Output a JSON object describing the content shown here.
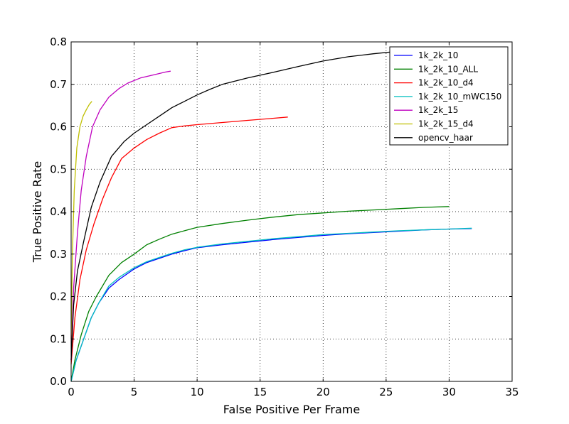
{
  "chart_data": {
    "type": "line",
    "title": "",
    "xlabel": "False Positive Per Frame",
    "ylabel": "True Positive Rate",
    "xlim": [
      0,
      35
    ],
    "ylim": [
      0.0,
      0.8
    ],
    "xticks": [
      0,
      5,
      10,
      15,
      20,
      25,
      30,
      35
    ],
    "yticks": [
      0.0,
      0.1,
      0.2,
      0.3,
      0.4,
      0.5,
      0.6,
      0.7,
      0.8
    ],
    "xtick_labels": [
      "0",
      "5",
      "10",
      "15",
      "20",
      "25",
      "30",
      "35"
    ],
    "ytick_labels": [
      "0.0",
      "0.1",
      "0.2",
      "0.3",
      "0.4",
      "0.5",
      "0.6",
      "0.7",
      "0.8"
    ],
    "grid": true,
    "legend_position": "top-right",
    "series": [
      {
        "name": "1k_2k_10",
        "color": "#0000ff",
        "x": [
          0.0,
          0.4,
          1.0,
          1.6,
          2.2,
          3.0,
          3.8,
          5.0,
          6.0,
          7.0,
          8.0,
          9.0,
          10.0,
          12.0,
          14.0,
          16.0,
          18.0,
          20.0,
          22.0,
          24.0,
          26.0,
          28.0,
          30.0,
          31.8
        ],
        "y": [
          0.0,
          0.05,
          0.1,
          0.15,
          0.185,
          0.22,
          0.24,
          0.265,
          0.28,
          0.29,
          0.3,
          0.308,
          0.315,
          0.322,
          0.328,
          0.334,
          0.339,
          0.344,
          0.348,
          0.351,
          0.354,
          0.357,
          0.359,
          0.36
        ]
      },
      {
        "name": "1k_2k_10_ALL",
        "color": "#008000",
        "x": [
          0.0,
          0.3,
          0.8,
          1.4,
          2.0,
          3.0,
          4.0,
          5.0,
          6.0,
          7.0,
          8.0,
          9.0,
          10.0,
          12.0,
          14.0,
          16.0,
          18.0,
          20.0,
          22.0,
          24.0,
          26.0,
          28.0,
          30.0
        ],
        "y": [
          0.0,
          0.05,
          0.11,
          0.165,
          0.2,
          0.25,
          0.28,
          0.3,
          0.322,
          0.335,
          0.347,
          0.355,
          0.363,
          0.372,
          0.38,
          0.387,
          0.393,
          0.397,
          0.401,
          0.404,
          0.407,
          0.41,
          0.412
        ]
      },
      {
        "name": "1k_2k_10_d4",
        "color": "#ff0000",
        "x": [
          0.0,
          0.3,
          0.7,
          1.2,
          1.8,
          2.5,
          3.2,
          4.0,
          5.0,
          6.0,
          7.0,
          8.0,
          9.0,
          10.0,
          12.0,
          14.0,
          16.0,
          17.2
        ],
        "y": [
          0.04,
          0.15,
          0.24,
          0.31,
          0.37,
          0.43,
          0.48,
          0.525,
          0.55,
          0.57,
          0.585,
          0.598,
          0.602,
          0.605,
          0.61,
          0.615,
          0.62,
          0.623
        ]
      },
      {
        "name": "1k_2k_10_mWC150",
        "color": "#00bfbf",
        "x": [
          0.0,
          0.4,
          1.0,
          1.6,
          2.2,
          3.0,
          3.8,
          5.0,
          6.0,
          7.0,
          8.0,
          9.0,
          10.0,
          12.0,
          14.0,
          16.0,
          18.0,
          20.0,
          22.0,
          24.0,
          26.0,
          28.0,
          30.0,
          31.8
        ],
        "y": [
          0.0,
          0.05,
          0.1,
          0.15,
          0.185,
          0.225,
          0.245,
          0.268,
          0.282,
          0.292,
          0.302,
          0.31,
          0.316,
          0.324,
          0.33,
          0.336,
          0.341,
          0.346,
          0.349,
          0.352,
          0.355,
          0.357,
          0.359,
          0.361
        ]
      },
      {
        "name": "1k_2k_15",
        "color": "#bf00bf",
        "x": [
          0.0,
          0.2,
          0.5,
          0.8,
          1.2,
          1.7,
          2.3,
          3.0,
          3.8,
          4.5,
          5.5,
          6.5,
          7.5,
          7.9
        ],
        "y": [
          0.05,
          0.22,
          0.35,
          0.45,
          0.53,
          0.6,
          0.64,
          0.67,
          0.69,
          0.703,
          0.715,
          0.722,
          0.729,
          0.731
        ]
      },
      {
        "name": "1k_2k_15_d4",
        "color": "#bfbf00",
        "x": [
          0.0,
          0.1,
          0.25,
          0.45,
          0.7,
          0.95,
          1.2,
          1.45,
          1.65
        ],
        "y": [
          0.1,
          0.3,
          0.45,
          0.55,
          0.6,
          0.625,
          0.64,
          0.653,
          0.66
        ]
      },
      {
        "name": "opencv_haar",
        "color": "#000000",
        "x": [
          0.0,
          0.2,
          0.5,
          1.0,
          1.6,
          2.3,
          3.2,
          4.2,
          5.0,
          6.0,
          7.0,
          8.0,
          9.0,
          10.0,
          11.0,
          12.0,
          14.0,
          16.0,
          18.0,
          20.0,
          22.0,
          24.0,
          26.0,
          27.0
        ],
        "y": [
          0.05,
          0.18,
          0.26,
          0.33,
          0.41,
          0.47,
          0.53,
          0.565,
          0.585,
          0.605,
          0.625,
          0.645,
          0.66,
          0.675,
          0.688,
          0.7,
          0.715,
          0.728,
          0.742,
          0.755,
          0.765,
          0.772,
          0.778,
          0.782
        ]
      }
    ]
  }
}
